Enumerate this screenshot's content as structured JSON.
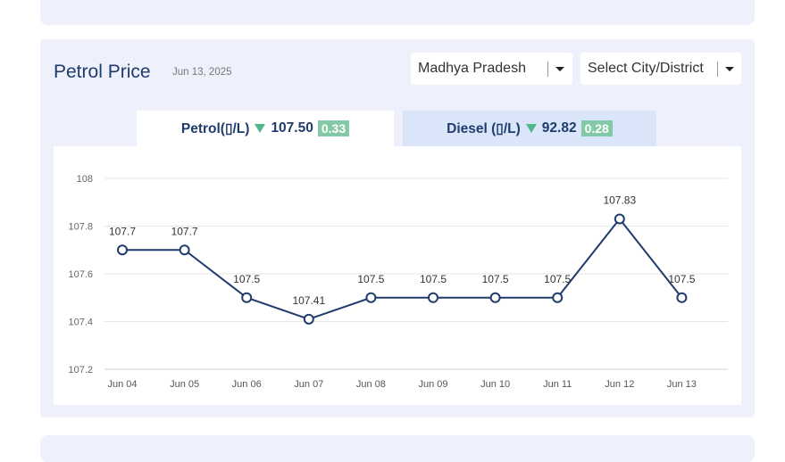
{
  "header": {
    "title": "Petrol Price",
    "date": "Jun 13, 2025"
  },
  "filters": {
    "state": "Madhya Pradesh",
    "city_placeholder": "Select City/District"
  },
  "tabs": {
    "petrol": {
      "label": "Petrol(▯/L)",
      "price": "107.50",
      "change": "0.33"
    },
    "diesel": {
      "label": "Diesel (▯/L)",
      "price": "92.82",
      "change": "0.28"
    }
  },
  "colors": {
    "line": "#1f3c6d",
    "down": "#52b788",
    "badge": "#84c9a5",
    "card_bg": "#eef1fc"
  },
  "chart_data": {
    "type": "line",
    "categories": [
      "Jun 04",
      "Jun 05",
      "Jun 06",
      "Jun 07",
      "Jun 08",
      "Jun 09",
      "Jun 10",
      "Jun 11",
      "Jun 12",
      "Jun 13"
    ],
    "values": [
      107.7,
      107.7,
      107.5,
      107.41,
      107.5,
      107.5,
      107.5,
      107.5,
      107.83,
      107.5
    ],
    "labels": [
      "107.7",
      "107.7",
      "107.5",
      "107.41",
      "107.5",
      "107.5",
      "107.5",
      "107.5",
      "107.83",
      "107.5"
    ],
    "yticks": [
      "107.2",
      "107.4",
      "107.6",
      "107.8",
      "108"
    ],
    "ylim": [
      107.2,
      108
    ],
    "grid": true
  }
}
